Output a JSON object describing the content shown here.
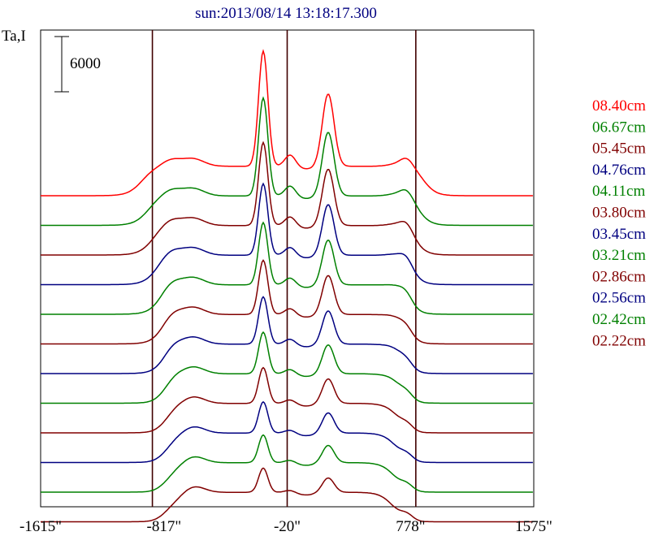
{
  "chart_data": {
    "type": "line",
    "title": "sun:2013/08/14 13:18:17.300",
    "ylabel": "Ta,I",
    "scale_bar_label": "6000",
    "scale_bar_value": 6000,
    "x_ticks": [
      -1615,
      -817,
      -20,
      778,
      1575
    ],
    "x_tick_labels": [
      "-1615\"",
      "-817\"",
      "-20\"",
      "778\"",
      "1575\""
    ],
    "xlim": [
      -1615,
      1575
    ],
    "vertical_lines": [
      -892,
      -20,
      812
    ],
    "grid": false,
    "legend_position": "right",
    "series": [
      {
        "name": "08.40cm",
        "color": "#ff0000",
        "ext": 1.0,
        "peak": 1.0,
        "side": 1.0
      },
      {
        "name": "06.67cm",
        "color": "#008000",
        "ext": 0.96,
        "peak": 0.85,
        "side": 0.88
      },
      {
        "name": "05.45cm",
        "color": "#800000",
        "ext": 0.93,
        "peak": 0.72,
        "side": 0.78
      },
      {
        "name": "04.76cm",
        "color": "#000080",
        "ext": 0.9,
        "peak": 0.62,
        "side": 0.7
      },
      {
        "name": "04.11cm",
        "color": "#008000",
        "ext": 0.87,
        "peak": 0.54,
        "side": 0.62
      },
      {
        "name": "03.80cm",
        "color": "#800000",
        "ext": 0.85,
        "peak": 0.47,
        "side": 0.54
      },
      {
        "name": "03.45cm",
        "color": "#000080",
        "ext": 0.83,
        "peak": 0.41,
        "side": 0.46
      },
      {
        "name": "03.21cm",
        "color": "#008000",
        "ext": 0.81,
        "peak": 0.36,
        "side": 0.4
      },
      {
        "name": "02.86cm",
        "color": "#800000",
        "ext": 0.79,
        "peak": 0.31,
        "side": 0.34
      },
      {
        "name": "02.56cm",
        "color": "#000080",
        "ext": 0.78,
        "peak": 0.27,
        "side": 0.28
      },
      {
        "name": "02.42cm",
        "color": "#008000",
        "ext": 0.77,
        "peak": 0.24,
        "side": 0.24
      },
      {
        "name": "02.22cm",
        "color": "#800000",
        "ext": 0.76,
        "peak": 0.21,
        "side": 0.2
      }
    ]
  }
}
